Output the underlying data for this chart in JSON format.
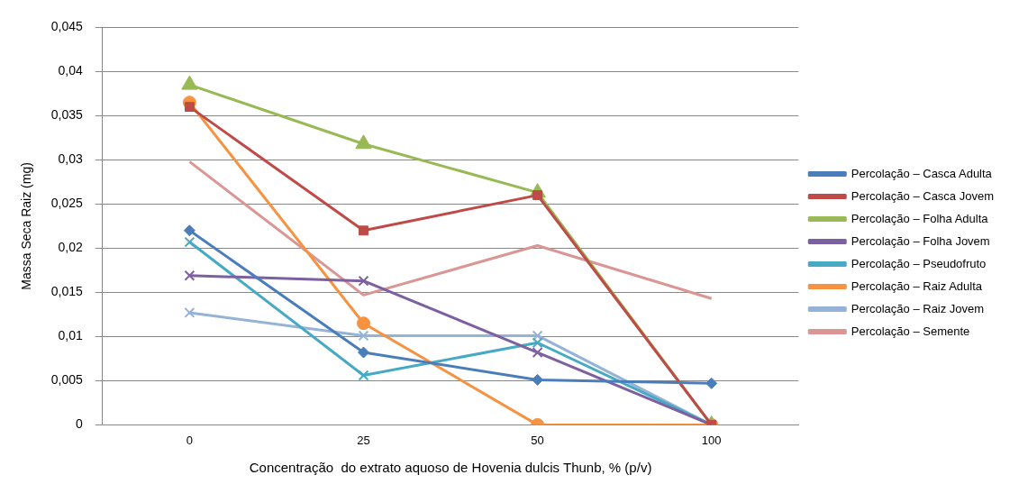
{
  "chart_data": {
    "type": "line",
    "xlabel": "Concentração  do extrato aquoso de Hovenia dulcis Thunb, % (p/v)",
    "ylabel": "Massa Seca Raiz (mg)",
    "categories": [
      "0",
      "25",
      "50",
      "100"
    ],
    "ylim": [
      0,
      0.045
    ],
    "yticks": [
      0,
      {
        "value": 0.005,
        "label": "0,005"
      },
      {
        "value": 0.01,
        "label": "0,01"
      },
      {
        "value": 0.015,
        "label": "0,015"
      },
      {
        "value": 0.02,
        "label": "0,02"
      },
      {
        "value": 0.025,
        "label": "0,025"
      },
      {
        "value": 0.03,
        "label": "0,03"
      },
      {
        "value": 0.035,
        "label": "0,035"
      },
      {
        "value": 0.04,
        "label": "0,04"
      },
      {
        "value": 0.045,
        "label": "0,045"
      }
    ],
    "grid": "y",
    "legend": "right",
    "series": [
      {
        "name": "Percolação – Casca Adulta",
        "color": "#4a7ebb",
        "marker": "diamond",
        "values": [
          0.022,
          0.0082,
          0.0051,
          0.0047
        ]
      },
      {
        "name": "Percolação – Casca Jovem",
        "color": "#be4b48",
        "marker": "square",
        "values": [
          0.036,
          0.022,
          0.026,
          0
        ]
      },
      {
        "name": "Percolação – Folha Adulta",
        "color": "#98b954",
        "marker": "triangle",
        "values": [
          0.0385,
          0.0318,
          0.0263,
          0
        ]
      },
      {
        "name": "Percolação – Folha Jovem",
        "color": "#7d60a0",
        "marker": "cross",
        "values": [
          0.0169,
          0.0163,
          0.0082,
          0
        ]
      },
      {
        "name": "Percolação – Pseudofruto",
        "color": "#46aac5",
        "marker": "cross",
        "values": [
          0.0207,
          0.0056,
          0.0093,
          0
        ]
      },
      {
        "name": "Percolação – Raiz Adulta",
        "color": "#f69240",
        "marker": "circle",
        "values": [
          0.0365,
          0.0115,
          0,
          0
        ]
      },
      {
        "name": "Percolação – Raiz Jovem",
        "color": "#95b3d7",
        "marker": "cross",
        "values": [
          0.0127,
          0.0101,
          0.0101,
          0
        ]
      },
      {
        "name": "Percolação – Semente",
        "color": "#d99694",
        "marker": "none",
        "values": [
          0.0298,
          0.0147,
          0.0203,
          0.0143
        ]
      }
    ]
  }
}
